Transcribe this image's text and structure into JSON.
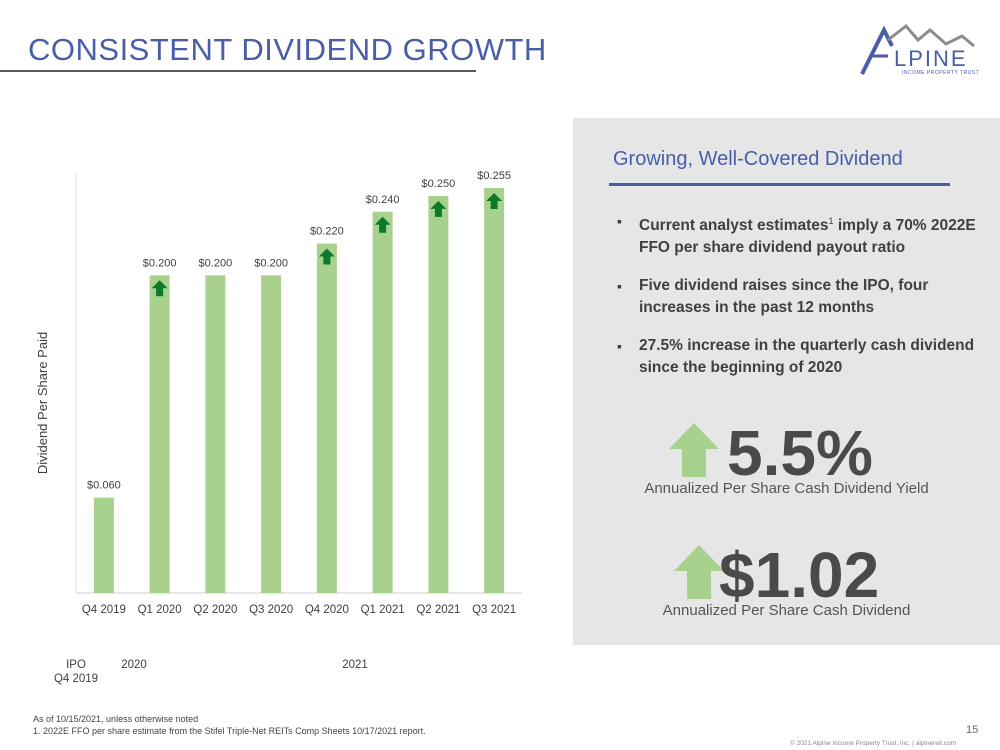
{
  "header": {
    "title": "CONSISTENT DIVIDEND GROWTH"
  },
  "logo": {
    "word": "LPINE",
    "initial": "A",
    "sub": "INCOME PROPERTY TRUST"
  },
  "chart_data": {
    "type": "bar",
    "categories": [
      "Q4 2019",
      "Q1 2020",
      "Q2 2020",
      "Q3 2020",
      "Q4 2020",
      "Q1 2021",
      "Q2 2021",
      "Q3 2021"
    ],
    "values": [
      0.06,
      0.2,
      0.2,
      0.2,
      0.22,
      0.24,
      0.25,
      0.255
    ],
    "data_labels": [
      "$0.060",
      "$0.200",
      "$0.200",
      "$0.200",
      "$0.220",
      "$0.240",
      "$0.250",
      "$0.255"
    ],
    "increase_markers": [
      false,
      true,
      false,
      false,
      true,
      true,
      true,
      true
    ],
    "ylabel": "Dividend Per Share Paid",
    "ylim": [
      0,
      0.26
    ],
    "bar_color": "#a9d18e",
    "marker_color": "#0b7a2a",
    "group_labels": [
      "IPO",
      "Q4 2019",
      "2020",
      "2021"
    ]
  },
  "panel": {
    "heading": "Growing, Well-Covered Dividend",
    "bullets": [
      {
        "pre": "Current analyst estimates",
        "sup": "1",
        "post": " imply a 70% 2022E FFO per share dividend payout ratio"
      },
      {
        "pre": "Five dividend raises since the IPO, four increases in the past 12 months",
        "sup": "",
        "post": ""
      },
      {
        "pre": "27.5% increase in the quarterly cash dividend since the beginning of 2020",
        "sup": "",
        "post": ""
      }
    ],
    "stat1": {
      "value": "5.5%",
      "caption": "Annualized Per Share Cash Dividend Yield"
    },
    "stat2": {
      "value": "$1.02",
      "caption": "Annualized Per Share Cash Dividend"
    },
    "arrow_color": "#a9d18e"
  },
  "footer": {
    "note": "As of 10/15/2021, unless otherwise noted",
    "footnote": "1.    2022E FFO per share estimate from the Stifel Triple-Net REITs Comp Sheets 10/17/2021 report.",
    "page": "15",
    "copyright": "© 2021 Alpine Income Property Trust, Inc.  |  alpinereit.com"
  }
}
